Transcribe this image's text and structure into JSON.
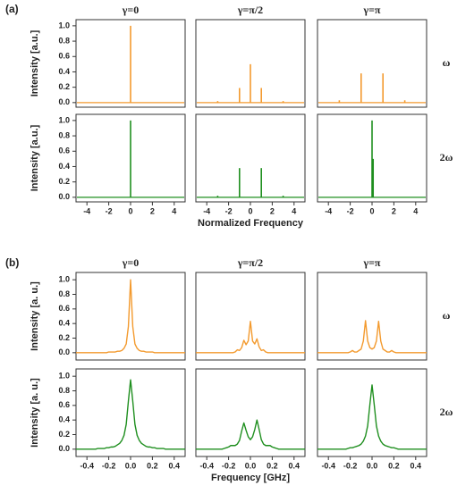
{
  "panel_labels": [
    "(a)",
    "(b)"
  ],
  "chart_data": [
    {
      "type": "stem",
      "title": "γ=0",
      "ylabel": "Intensity [a.u.]",
      "x": [
        0
      ],
      "values": [
        1
      ],
      "color": "#f39a2e",
      "xlim": [
        -5,
        5
      ],
      "ylim": [
        -0.06,
        1.08
      ],
      "yticks": [
        {
          "value": 0,
          "label": "0.0"
        },
        0.2,
        0.4,
        0.6,
        0.8,
        {
          "value": 1,
          "label": "1.0"
        }
      ]
    },
    {
      "type": "stem",
      "title": "γ=π/2",
      "x": [
        -3,
        -1,
        0,
        1,
        3
      ],
      "values": [
        0.02,
        0.19,
        0.5,
        0.19,
        0.02
      ],
      "color": "#f39a2e",
      "xlim": [
        -5,
        5
      ],
      "ylim": [
        -0.06,
        1.08
      ]
    },
    {
      "type": "stem",
      "title": "γ=π",
      "annotation": "ω",
      "x": [
        -3,
        -1,
        1,
        3
      ],
      "values": [
        0.03,
        0.38,
        0.38,
        0.03
      ],
      "color": "#f39a2e",
      "xlim": [
        -5,
        5
      ],
      "ylim": [
        -0.06,
        1.08
      ]
    },
    {
      "type": "stem",
      "ylabel": "Intensity [a.u.]",
      "x": [
        0
      ],
      "values": [
        1
      ],
      "color": "#1f8f1f",
      "xlim": [
        -5,
        5
      ],
      "ylim": [
        -0.06,
        1.08
      ],
      "xticks": [
        -4,
        -2,
        0,
        2,
        4
      ],
      "yticks": [
        {
          "value": 0,
          "label": "0.0"
        },
        0.2,
        0.4,
        0.6,
        0.8,
        {
          "value": 1,
          "label": "1.0"
        }
      ]
    },
    {
      "type": "stem",
      "xlabel": "Normalized Frequency",
      "x": [
        -3,
        -1,
        1,
        3
      ],
      "values": [
        0.02,
        0.38,
        0.38,
        0.02
      ],
      "color": "#1f8f1f",
      "xlim": [
        -5,
        5
      ],
      "ylim": [
        -0.06,
        1.08
      ],
      "xticks": [
        -4,
        -2,
        0,
        2,
        4
      ]
    },
    {
      "type": "stem",
      "annotation": "2ω",
      "x": [
        0,
        0.1
      ],
      "values": [
        1,
        0.5
      ],
      "color": "#1f8f1f",
      "xlim": [
        -5,
        5
      ],
      "ylim": [
        -0.06,
        1.08
      ],
      "xticks": [
        -4,
        -2,
        0,
        2,
        4
      ]
    },
    {
      "type": "line",
      "title": "γ=0",
      "ylabel": "Intensity [a. u.]",
      "x": [
        -0.5,
        -0.48,
        -0.46,
        -0.44,
        -0.42,
        -0.4,
        -0.38,
        -0.36,
        -0.34,
        -0.32,
        -0.3,
        -0.28,
        -0.26,
        -0.24,
        -0.22,
        -0.2,
        -0.18,
        -0.16,
        -0.14,
        -0.12,
        -0.1,
        -0.08,
        -0.06,
        -0.04,
        -0.02,
        0,
        0.02,
        0.04,
        0.06,
        0.08,
        0.1,
        0.12,
        0.14,
        0.16,
        0.18,
        0.2,
        0.22,
        0.24,
        0.26,
        0.28,
        0.3,
        0.32,
        0.34,
        0.36,
        0.38,
        0.4,
        0.42,
        0.44,
        0.46,
        0.48,
        0.5
      ],
      "values": [
        0,
        0,
        0,
        0,
        0,
        0,
        0,
        0,
        0,
        0,
        0,
        0,
        0,
        0,
        0,
        0.01,
        0.01,
        0.01,
        0.01,
        0.02,
        0.02,
        0.03,
        0.06,
        0.12,
        0.36,
        1.0,
        0.36,
        0.12,
        0.06,
        0.03,
        0.02,
        0.02,
        0.01,
        0.01,
        0.01,
        0.01,
        0,
        0,
        0,
        0,
        0,
        0,
        0,
        0,
        0,
        0,
        0,
        0,
        0,
        0,
        0
      ],
      "color": "#f39a2e",
      "xlim": [
        -0.5,
        0.5
      ],
      "ylim": [
        -0.1,
        1.1
      ],
      "yticks": [
        {
          "value": 0,
          "label": "0.0"
        },
        0.2,
        0.4,
        0.6,
        0.8,
        {
          "value": 1,
          "label": "1.0"
        }
      ]
    },
    {
      "type": "line",
      "title": "γ=π/2",
      "x": [
        -0.5,
        -0.48,
        -0.46,
        -0.44,
        -0.42,
        -0.4,
        -0.38,
        -0.36,
        -0.34,
        -0.32,
        -0.3,
        -0.28,
        -0.26,
        -0.24,
        -0.22,
        -0.2,
        -0.18,
        -0.16,
        -0.14,
        -0.12,
        -0.1,
        -0.08,
        -0.06,
        -0.04,
        -0.02,
        0,
        0.02,
        0.04,
        0.06,
        0.08,
        0.1,
        0.12,
        0.14,
        0.16,
        0.18,
        0.2,
        0.22,
        0.24,
        0.26,
        0.28,
        0.3,
        0.32,
        0.34,
        0.36,
        0.38,
        0.4,
        0.42,
        0.44,
        0.46,
        0.48,
        0.5
      ],
      "values": [
        0,
        0,
        0,
        0,
        0,
        0,
        0,
        0,
        0,
        0,
        0,
        0,
        0,
        0,
        0,
        0,
        0,
        0,
        0.01,
        0.04,
        0.03,
        0.07,
        0.17,
        0.11,
        0.16,
        0.43,
        0.16,
        0.12,
        0.19,
        0.08,
        0.03,
        0.04,
        0.01,
        0,
        0,
        0,
        0,
        0,
        0,
        0,
        0,
        0,
        0,
        0,
        0,
        0,
        0,
        0,
        0,
        0,
        0
      ],
      "color": "#f39a2e",
      "xlim": [
        -0.5,
        0.5
      ],
      "ylim": [
        -0.1,
        1.1
      ]
    },
    {
      "type": "line",
      "title": "γ=π",
      "annotation": "ω",
      "x": [
        -0.5,
        -0.48,
        -0.46,
        -0.44,
        -0.42,
        -0.4,
        -0.38,
        -0.36,
        -0.34,
        -0.32,
        -0.3,
        -0.28,
        -0.26,
        -0.24,
        -0.22,
        -0.2,
        -0.18,
        -0.16,
        -0.14,
        -0.12,
        -0.1,
        -0.08,
        -0.06,
        -0.04,
        -0.02,
        0,
        0.02,
        0.04,
        0.06,
        0.08,
        0.1,
        0.12,
        0.14,
        0.16,
        0.18,
        0.2,
        0.22,
        0.24,
        0.26,
        0.28,
        0.3,
        0.32,
        0.34,
        0.36,
        0.38,
        0.4,
        0.42,
        0.44,
        0.46,
        0.48,
        0.5
      ],
      "values": [
        0,
        0,
        0,
        0,
        0,
        0,
        0,
        0,
        0,
        0,
        0,
        0,
        0,
        0,
        0,
        0.01,
        0.03,
        0.01,
        0.01,
        0.03,
        0.05,
        0.16,
        0.44,
        0.16,
        0.07,
        0.05,
        0.07,
        0.16,
        0.43,
        0.16,
        0.05,
        0.03,
        0.01,
        0.01,
        0.03,
        0.01,
        0,
        0,
        0,
        0,
        0,
        0,
        0,
        0,
        0,
        0,
        0,
        0,
        0,
        0,
        0
      ],
      "color": "#f39a2e",
      "xlim": [
        -0.5,
        0.5
      ],
      "ylim": [
        -0.1,
        1.1
      ]
    },
    {
      "type": "line",
      "ylabel": "Intensity [a. u.]",
      "x": [
        -0.5,
        -0.48,
        -0.46,
        -0.44,
        -0.42,
        -0.4,
        -0.38,
        -0.36,
        -0.34,
        -0.32,
        -0.3,
        -0.28,
        -0.26,
        -0.24,
        -0.22,
        -0.2,
        -0.18,
        -0.16,
        -0.14,
        -0.12,
        -0.1,
        -0.08,
        -0.06,
        -0.04,
        -0.02,
        0,
        0.02,
        0.04,
        0.06,
        0.08,
        0.1,
        0.12,
        0.14,
        0.16,
        0.18,
        0.2,
        0.22,
        0.24,
        0.26,
        0.28,
        0.3,
        0.32,
        0.34,
        0.36,
        0.38,
        0.4,
        0.42,
        0.44,
        0.46,
        0.48,
        0.5
      ],
      "values": [
        0,
        0,
        0,
        0,
        0,
        0,
        0,
        0,
        0,
        0,
        0.01,
        0.01,
        0.01,
        0.01,
        0.02,
        0.02,
        0.03,
        0.03,
        0.04,
        0.06,
        0.08,
        0.12,
        0.19,
        0.34,
        0.66,
        0.95,
        0.66,
        0.34,
        0.19,
        0.12,
        0.08,
        0.06,
        0.04,
        0.03,
        0.03,
        0.02,
        0.02,
        0.01,
        0.01,
        0.01,
        0.01,
        0,
        0,
        0,
        0,
        0,
        0,
        0,
        0,
        0,
        0
      ],
      "color": "#1f8f1f",
      "xlim": [
        -0.5,
        0.5
      ],
      "ylim": [
        -0.1,
        1.1
      ],
      "xticks": [
        -0.4,
        -0.2,
        {
          "value": 0,
          "label": "0.0"
        },
        0.2,
        0.4
      ],
      "yticks": [
        {
          "value": 0,
          "label": "0.0"
        },
        0.2,
        0.4,
        0.6,
        0.8,
        {
          "value": 1,
          "label": "1.0"
        }
      ]
    },
    {
      "type": "line",
      "xlabel": "Frequency [GHz]",
      "x": [
        -0.5,
        -0.48,
        -0.46,
        -0.44,
        -0.42,
        -0.4,
        -0.38,
        -0.36,
        -0.34,
        -0.32,
        -0.3,
        -0.28,
        -0.26,
        -0.24,
        -0.22,
        -0.2,
        -0.18,
        -0.16,
        -0.14,
        -0.12,
        -0.1,
        -0.08,
        -0.06,
        -0.04,
        -0.02,
        0,
        0.02,
        0.04,
        0.06,
        0.08,
        0.1,
        0.12,
        0.14,
        0.16,
        0.18,
        0.2,
        0.22,
        0.24,
        0.26,
        0.28,
        0.3,
        0.32,
        0.34,
        0.36,
        0.38,
        0.4,
        0.42,
        0.44,
        0.46,
        0.48,
        0.5
      ],
      "values": [
        0,
        0,
        0,
        0,
        0,
        0,
        0,
        0,
        0,
        0,
        0,
        0,
        0,
        0.01,
        0.02,
        0.03,
        0.05,
        0.05,
        0.05,
        0.07,
        0.12,
        0.25,
        0.36,
        0.26,
        0.17,
        0.13,
        0.17,
        0.27,
        0.4,
        0.27,
        0.13,
        0.07,
        0.05,
        0.05,
        0.05,
        0.03,
        0.02,
        0.01,
        0,
        0,
        0,
        0,
        0,
        0,
        0,
        0,
        0,
        0,
        0,
        0,
        0
      ],
      "color": "#1f8f1f",
      "xlim": [
        -0.5,
        0.5
      ],
      "ylim": [
        -0.1,
        1.1
      ],
      "xticks": [
        -0.4,
        -0.2,
        {
          "value": 0,
          "label": "0.0"
        },
        0.2,
        0.4
      ]
    },
    {
      "type": "line",
      "annotation": "2ω",
      "x": [
        -0.5,
        -0.48,
        -0.46,
        -0.44,
        -0.42,
        -0.4,
        -0.38,
        -0.36,
        -0.34,
        -0.32,
        -0.3,
        -0.28,
        -0.26,
        -0.24,
        -0.22,
        -0.2,
        -0.18,
        -0.16,
        -0.14,
        -0.12,
        -0.1,
        -0.08,
        -0.06,
        -0.04,
        -0.02,
        0,
        0.02,
        0.04,
        0.06,
        0.08,
        0.1,
        0.12,
        0.14,
        0.16,
        0.18,
        0.2,
        0.22,
        0.24,
        0.26,
        0.28,
        0.3,
        0.32,
        0.34,
        0.36,
        0.38,
        0.4,
        0.42,
        0.44,
        0.46,
        0.48,
        0.5
      ],
      "values": [
        0,
        0,
        0,
        0,
        0,
        0,
        0,
        0,
        0,
        0,
        0,
        0,
        0,
        0,
        0.01,
        0.02,
        0.02,
        0.03,
        0.04,
        0.05,
        0.07,
        0.11,
        0.18,
        0.32,
        0.61,
        0.88,
        0.61,
        0.32,
        0.18,
        0.11,
        0.07,
        0.05,
        0.04,
        0.03,
        0.02,
        0.02,
        0.01,
        0,
        0,
        0,
        0,
        0,
        0,
        0,
        0,
        0,
        0,
        0,
        0,
        0,
        0
      ],
      "color": "#1f8f1f",
      "xlim": [
        -0.5,
        0.5
      ],
      "ylim": [
        -0.1,
        1.1
      ],
      "xticks": [
        -0.4,
        -0.2,
        {
          "value": 0,
          "label": "0.0"
        },
        0.2,
        0.4
      ]
    }
  ]
}
